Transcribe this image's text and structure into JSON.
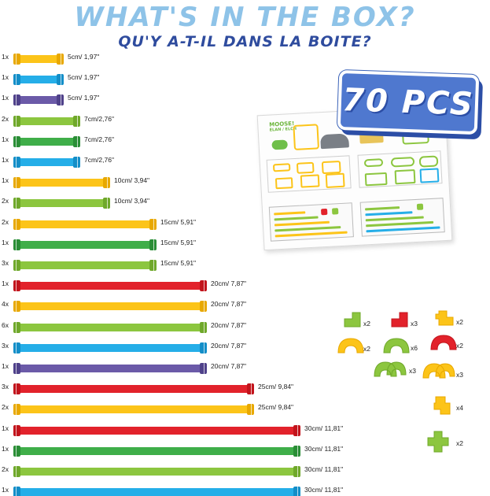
{
  "header": {
    "title": "WHAT'S IN THE BOX?",
    "subtitle": "QU'Y A-T-IL DANS LA BOITE?"
  },
  "badge": {
    "label": "70 PCS"
  },
  "colors": {
    "yellow": "#fcc419",
    "cyan": "#25aee8",
    "purple": "#6b5aa8",
    "lime": "#8cc63f",
    "green": "#3fae49",
    "red": "#e2222b",
    "title_blue": "#8ec3e8",
    "subtitle_blue": "#2f4c9e",
    "badge_blue": "#4f78cf"
  },
  "tubes": [
    {
      "qty": "1x",
      "color": "yellow",
      "length": "5cm/ 1,97\""
    },
    {
      "qty": "1x",
      "color": "cyan",
      "length": "5cm/ 1,97\""
    },
    {
      "qty": "1x",
      "color": "purple",
      "length": "5cm/ 1,97\""
    },
    {
      "qty": "2x",
      "color": "lime",
      "length": "7cm/2,76\""
    },
    {
      "qty": "1x",
      "color": "green",
      "length": "7cm/2,76\""
    },
    {
      "qty": "1x",
      "color": "cyan",
      "length": "7cm/2,76\""
    },
    {
      "qty": "1x",
      "color": "yellow",
      "length": "10cm/ 3,94\""
    },
    {
      "qty": "2x",
      "color": "lime",
      "length": "10cm/ 3,94\""
    },
    {
      "qty": "2x",
      "color": "yellow",
      "length": "15cm/ 5,91\""
    },
    {
      "qty": "1x",
      "color": "green",
      "length": "15cm/ 5,91\""
    },
    {
      "qty": "3x",
      "color": "lime",
      "length": "15cm/ 5,91\""
    },
    {
      "qty": "1x",
      "color": "red",
      "length": "20cm/ 7,87\""
    },
    {
      "qty": "4x",
      "color": "yellow",
      "length": "20cm/ 7,87\""
    },
    {
      "qty": "6x",
      "color": "lime",
      "length": "20cm/ 7,87\""
    },
    {
      "qty": "3x",
      "color": "cyan",
      "length": "20cm/ 7,87\""
    },
    {
      "qty": "1x",
      "color": "purple",
      "length": "20cm/ 7,87\""
    },
    {
      "qty": "3x",
      "color": "red",
      "length": "25cm/ 9,84\""
    },
    {
      "qty": "2x",
      "color": "yellow",
      "length": "25cm/ 9,84\""
    },
    {
      "qty": "1x",
      "color": "red",
      "length": "30cm/ 11,81\""
    },
    {
      "qty": "1x",
      "color": "green",
      "length": "30cm/ 11,81\""
    },
    {
      "qty": "2x",
      "color": "lime",
      "length": "30cm/ 11,81\""
    },
    {
      "qty": "1x",
      "color": "cyan",
      "length": "30cm/ 11,81\""
    }
  ],
  "connectors": [
    {
      "qty": "x2",
      "color": "lime",
      "shape": "elbow-connector-icon"
    },
    {
      "qty": "x3",
      "color": "red",
      "shape": "elbow-connector-icon"
    },
    {
      "qty": "x2",
      "color": "yellow",
      "shape": "tee-connector-icon"
    },
    {
      "qty": "x2",
      "color": "yellow",
      "shape": "arch-connector-icon"
    },
    {
      "qty": "x6",
      "color": "lime",
      "shape": "arch-connector-icon"
    },
    {
      "qty": "x2",
      "color": "red",
      "shape": "arch-connector-icon"
    },
    {
      "qty": "x3",
      "color": "lime",
      "shape": "double-arch-connector-icon"
    },
    {
      "qty": "x3",
      "color": "yellow",
      "shape": "double-arch-connector-icon"
    },
    {
      "qty": "x4",
      "color": "yellow",
      "shape": "cross-connector-icon"
    },
    {
      "qty": "x2",
      "color": "lime",
      "shape": "four-way-connector-icon"
    }
  ],
  "booklet": {
    "title": "MOOSE!",
    "subtitle": "ÉLAN / ELCH"
  }
}
